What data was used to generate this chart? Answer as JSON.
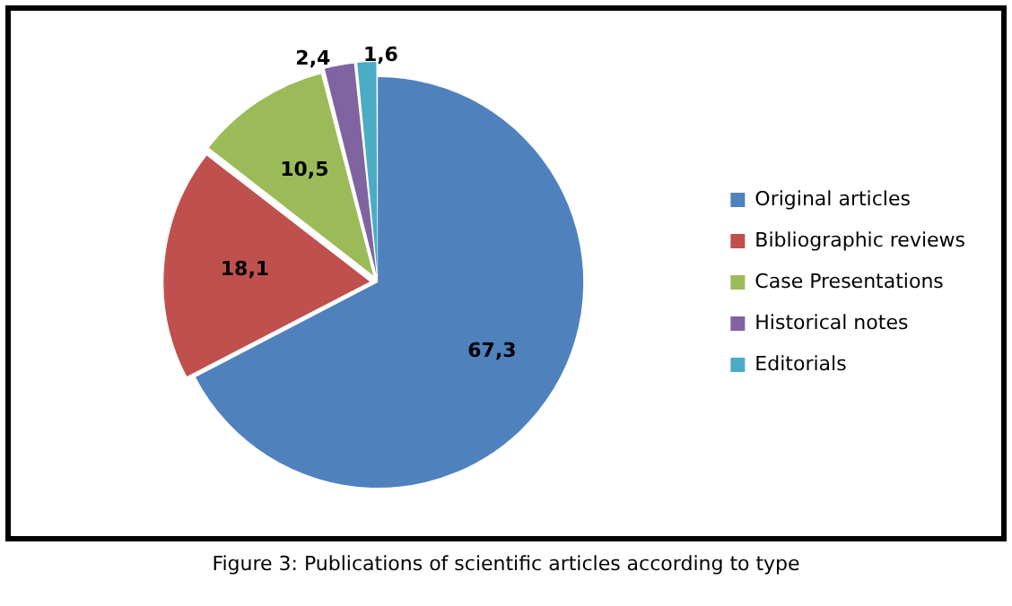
{
  "chart_data": {
    "type": "pie",
    "categories": [
      "Original articles",
      "Bibliographic reviews",
      "Case Presentations",
      "Historical notes",
      "Editorials"
    ],
    "values": [
      67.3,
      18.1,
      10.5,
      2.4,
      1.6
    ],
    "value_labels": [
      "67,3",
      "18,1",
      "10,5",
      "2,4",
      "1,6"
    ],
    "colors": [
      "#4f81bd",
      "#c0504d",
      "#9bbb59",
      "#8064a2",
      "#4bacc6"
    ],
    "legend": "right",
    "annotations": [
      "Figure 3: Publications of scientific articles according to type"
    ]
  }
}
